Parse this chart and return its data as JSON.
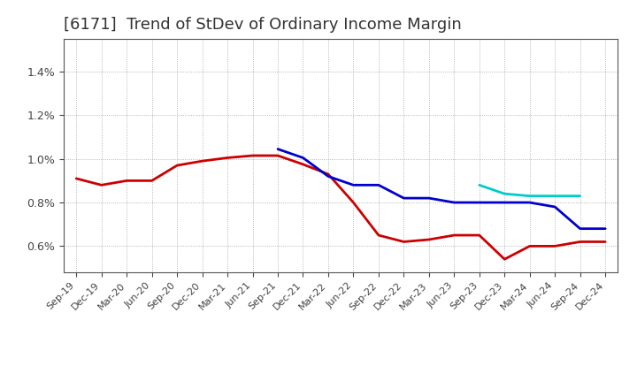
{
  "title": "[6171]  Trend of StDev of Ordinary Income Margin",
  "title_fontsize": 13,
  "title_color": "#333333",
  "background_color": "#ffffff",
  "plot_bg_color": "#ffffff",
  "grid_color": "#999999",
  "yticks": [
    0.006,
    0.008,
    0.01,
    0.012,
    0.014
  ],
  "ylim": [
    0.0048,
    0.0155
  ],
  "xlabels": [
    "Sep-19",
    "Dec-19",
    "Mar-20",
    "Jun-20",
    "Sep-20",
    "Dec-20",
    "Mar-21",
    "Jun-21",
    "Sep-21",
    "Dec-21",
    "Mar-22",
    "Jun-22",
    "Sep-22",
    "Dec-22",
    "Mar-23",
    "Jun-23",
    "Sep-23",
    "Dec-23",
    "Mar-24",
    "Jun-24",
    "Sep-24",
    "Dec-24"
  ],
  "series_3y": [
    0.0091,
    0.0088,
    0.009,
    0.009,
    0.0097,
    0.0099,
    0.01005,
    0.01015,
    0.01015,
    0.00975,
    0.0093,
    0.008,
    0.0065,
    0.0062,
    0.0063,
    0.0065,
    0.0065,
    0.0054,
    0.006,
    0.006,
    0.0062,
    0.0062
  ],
  "series_5y": [
    null,
    null,
    null,
    null,
    null,
    null,
    null,
    null,
    0.01045,
    0.01005,
    0.0092,
    0.0088,
    0.0088,
    0.0082,
    0.0082,
    0.008,
    0.008,
    0.008,
    0.008,
    0.0078,
    0.0068,
    0.0068
  ],
  "series_7y": [
    null,
    null,
    null,
    null,
    null,
    null,
    null,
    null,
    null,
    null,
    null,
    null,
    null,
    null,
    null,
    null,
    0.0088,
    0.0084,
    0.0083,
    0.0083,
    0.0083,
    null
  ],
  "series_10y": [
    null,
    null,
    null,
    null,
    null,
    null,
    null,
    null,
    null,
    null,
    null,
    null,
    null,
    null,
    null,
    null,
    null,
    null,
    null,
    null,
    null,
    null
  ],
  "color_3y": "#cc0000",
  "color_5y": "#0000cc",
  "color_7y": "#00cccc",
  "color_10y": "#007700",
  "linewidth": 2.0,
  "tick_color": "#444444",
  "tick_fontsize": 8,
  "spine_color": "#555555"
}
